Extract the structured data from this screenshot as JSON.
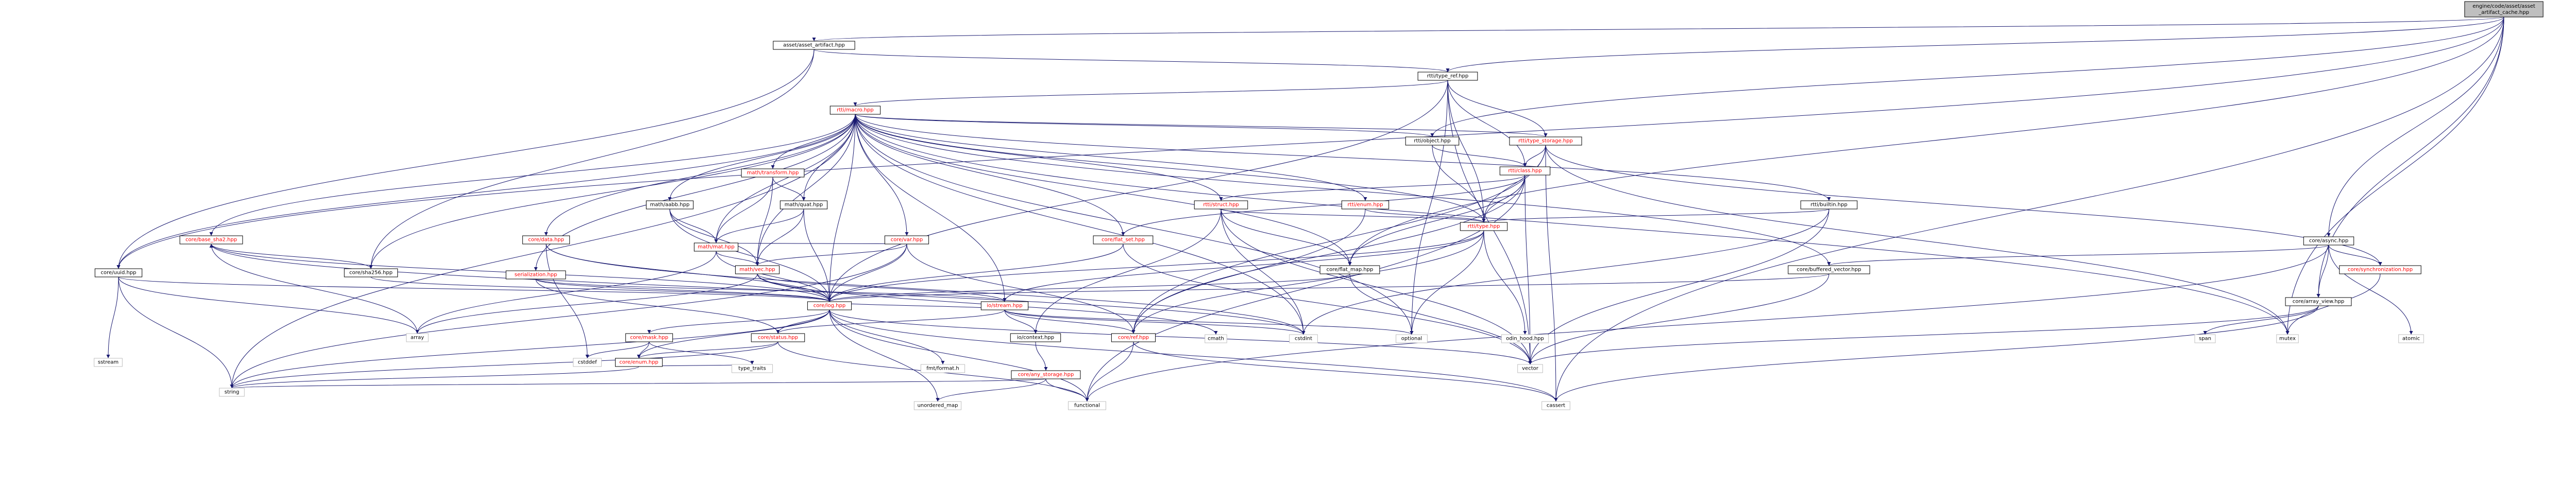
{
  "colors": {
    "edge": "#191970",
    "root_fill": "#bfbfbf",
    "node_fill": "#ffffff",
    "node_stroke": "#000000",
    "system_stroke": "#bfbfbf",
    "linked_text": "#000000",
    "unlinked_text": "#ff0000"
  },
  "nodes": [
    {
      "id": "root",
      "label": "engine/code/asset/asset\n_artifact_cache.hpp",
      "kind": "root"
    },
    {
      "id": "artifact",
      "label": "asset/asset_artifact.hpp",
      "kind": "plain"
    },
    {
      "id": "type_ref",
      "label": "rtti/type_ref.hpp",
      "kind": "plain"
    },
    {
      "id": "rtti_macro",
      "label": "rtti/macro.hpp",
      "kind": "red"
    },
    {
      "id": "type_storage",
      "label": "rtti/type_storage.hpp",
      "kind": "red"
    },
    {
      "id": "object",
      "label": "rtti/object.hpp",
      "kind": "plain"
    },
    {
      "id": "rtti_class",
      "label": "rtti/class.hpp",
      "kind": "red"
    },
    {
      "id": "rtti_struct",
      "label": "rtti/struct.hpp",
      "kind": "red"
    },
    {
      "id": "rtti_enum",
      "label": "rtti/enum.hpp",
      "kind": "red"
    },
    {
      "id": "rtti_type",
      "label": "rtti/type.hpp",
      "kind": "red"
    },
    {
      "id": "rtti_builtin",
      "label": "rtti/builtin.hpp",
      "kind": "plain"
    },
    {
      "id": "math_transform",
      "label": "math/transform.hpp",
      "kind": "red"
    },
    {
      "id": "math_quat",
      "label": "math/quat.hpp",
      "kind": "plain"
    },
    {
      "id": "math_aabb",
      "label": "math/aabb.hpp",
      "kind": "plain"
    },
    {
      "id": "math_mat",
      "label": "math/mat.hpp",
      "kind": "red"
    },
    {
      "id": "math_vec",
      "label": "math/vec.hpp",
      "kind": "red"
    },
    {
      "id": "core_data",
      "label": "core/data.hpp",
      "kind": "red"
    },
    {
      "id": "core_var",
      "label": "core/var.hpp",
      "kind": "red"
    },
    {
      "id": "core_flat_set",
      "label": "core/flat_set.hpp",
      "kind": "red"
    },
    {
      "id": "core_flat_map",
      "label": "core/flat_map.hpp",
      "kind": "plain"
    },
    {
      "id": "core_base_sha",
      "label": "core/base_sha2.hpp",
      "kind": "red"
    },
    {
      "id": "core_uuid",
      "label": "core/uuid.hpp",
      "kind": "plain"
    },
    {
      "id": "core_sha256",
      "label": "core/sha256.hpp",
      "kind": "plain"
    },
    {
      "id": "serialization",
      "label": "serialization.hpp",
      "kind": "red"
    },
    {
      "id": "core_async",
      "label": "core/async.hpp",
      "kind": "plain"
    },
    {
      "id": "core_buffered_vector",
      "label": "core/buffered_vector.hpp",
      "kind": "plain"
    },
    {
      "id": "core_sync",
      "label": "core/synchronization.hpp",
      "kind": "red"
    },
    {
      "id": "core_array_view",
      "label": "core/array_view.hpp",
      "kind": "plain"
    },
    {
      "id": "core_log",
      "label": "core/log.hpp",
      "kind": "red"
    },
    {
      "id": "io_stream",
      "label": "io/stream.hpp",
      "kind": "red"
    },
    {
      "id": "core_mask",
      "label": "core/mask.hpp",
      "kind": "red"
    },
    {
      "id": "core_status",
      "label": "core/status.hpp",
      "kind": "red"
    },
    {
      "id": "io_context",
      "label": "io/context.hpp",
      "kind": "plain"
    },
    {
      "id": "core_ref",
      "label": "core/ref.hpp",
      "kind": "red"
    },
    {
      "id": "core_enum",
      "label": "core/enum.hpp",
      "kind": "red"
    },
    {
      "id": "core_any_storage",
      "label": "core/any_storage.hpp",
      "kind": "red"
    },
    {
      "id": "s_mutex",
      "label": "mutex",
      "kind": "sys"
    },
    {
      "id": "s_optional",
      "label": "optional",
      "kind": "sys"
    },
    {
      "id": "s_cstdint",
      "label": "cstdint",
      "kind": "sys"
    },
    {
      "id": "s_cstddef",
      "label": "cstddef",
      "kind": "sys"
    },
    {
      "id": "s_array",
      "label": "array",
      "kind": "sys"
    },
    {
      "id": "s_sstream",
      "label": "sstream",
      "kind": "sys"
    },
    {
      "id": "s_type_traits",
      "label": "type_traits",
      "kind": "sys"
    },
    {
      "id": "s_string",
      "label": "string",
      "kind": "sys"
    },
    {
      "id": "s_unordered_map",
      "label": "unordered_map",
      "kind": "sys"
    },
    {
      "id": "s_functional",
      "label": "functional",
      "kind": "sys"
    },
    {
      "id": "s_cassert",
      "label": "cassert",
      "kind": "sys"
    },
    {
      "id": "s_vector",
      "label": "vector",
      "kind": "sys"
    },
    {
      "id": "s_cmath",
      "label": "cmath",
      "kind": "sys"
    },
    {
      "id": "s_fmt",
      "label": "fmt/format.h",
      "kind": "sys"
    },
    {
      "id": "s_span",
      "label": "span",
      "kind": "sys"
    },
    {
      "id": "s_atomic",
      "label": "atomic",
      "kind": "sys"
    },
    {
      "id": "s_odin_hood",
      "label": "odin_hood.hpp",
      "kind": "sys"
    }
  ],
  "edges": [
    [
      "root",
      "artifact"
    ],
    [
      "root",
      "core_uuid"
    ],
    [
      "root",
      "core_flat_map"
    ],
    [
      "root",
      "s_mutex"
    ],
    [
      "root",
      "object"
    ],
    [
      "root",
      "core_async"
    ],
    [
      "root",
      "core_array_view"
    ],
    [
      "root",
      "s_cassert"
    ],
    [
      "root",
      "type_ref"
    ],
    [
      "artifact",
      "type_ref"
    ],
    [
      "artifact",
      "core_uuid"
    ],
    [
      "artifact",
      "core_sha256"
    ],
    [
      "type_ref",
      "rtti_macro"
    ],
    [
      "type_ref",
      "type_storage"
    ],
    [
      "type_ref",
      "rtti_class"
    ],
    [
      "type_ref",
      "rtti_type"
    ],
    [
      "type_ref",
      "s_optional"
    ],
    [
      "type_ref",
      "core_log"
    ],
    [
      "type_ref",
      "s_vector"
    ],
    [
      "rtti_macro",
      "object"
    ],
    [
      "rtti_macro",
      "type_storage"
    ],
    [
      "rtti_macro",
      "rtti_struct"
    ],
    [
      "rtti_macro",
      "rtti_enum"
    ],
    [
      "rtti_macro",
      "rtti_type"
    ],
    [
      "rtti_macro",
      "rtti_builtin"
    ],
    [
      "rtti_macro",
      "math_transform"
    ],
    [
      "rtti_macro",
      "math_quat"
    ],
    [
      "rtti_macro",
      "math_aabb"
    ],
    [
      "rtti_macro",
      "math_mat"
    ],
    [
      "rtti_macro",
      "math_vec"
    ],
    [
      "rtti_macro",
      "core_data"
    ],
    [
      "rtti_macro",
      "core_var"
    ],
    [
      "rtti_macro",
      "core_flat_set"
    ],
    [
      "rtti_macro",
      "core_flat_map"
    ],
    [
      "rtti_macro",
      "core_base_sha"
    ],
    [
      "rtti_macro",
      "core_uuid"
    ],
    [
      "rtti_macro",
      "core_sha256"
    ],
    [
      "rtti_macro",
      "serialization"
    ],
    [
      "rtti_macro",
      "core_buffered_vector"
    ],
    [
      "rtti_macro",
      "s_mutex"
    ],
    [
      "rtti_macro",
      "s_string"
    ],
    [
      "rtti_macro",
      "io_stream"
    ],
    [
      "rtti_macro",
      "core_log"
    ],
    [
      "rtti_macro",
      "s_optional"
    ],
    [
      "rtti_macro",
      "s_cstdint"
    ],
    [
      "type_storage",
      "rtti_class"
    ],
    [
      "type_storage",
      "rtti_type"
    ],
    [
      "type_storage",
      "core_sync"
    ],
    [
      "type_storage",
      "s_mutex"
    ],
    [
      "type_storage",
      "s_cassert"
    ],
    [
      "type_storage",
      "core_ref"
    ],
    [
      "object",
      "rtti_class"
    ],
    [
      "object",
      "rtti_type"
    ],
    [
      "rtti_class",
      "rtti_struct"
    ],
    [
      "rtti_class",
      "rtti_type"
    ],
    [
      "rtti_class",
      "core_flat_set"
    ],
    [
      "rtti_class",
      "core_flat_map"
    ],
    [
      "rtti_class",
      "s_vector"
    ],
    [
      "rtti_class",
      "core_ref"
    ],
    [
      "rtti_class",
      "s_functional"
    ],
    [
      "rtti_struct",
      "rtti_type"
    ],
    [
      "rtti_struct",
      "core_flat_map"
    ],
    [
      "rtti_struct",
      "io_context"
    ],
    [
      "rtti_struct",
      "s_cstdint"
    ],
    [
      "rtti_struct",
      "s_vector"
    ],
    [
      "rtti_enum",
      "rtti_type"
    ],
    [
      "rtti_enum",
      "core_ref"
    ],
    [
      "rtti_type",
      "core_log"
    ],
    [
      "rtti_type",
      "io_stream"
    ],
    [
      "rtti_type",
      "core_ref"
    ],
    [
      "rtti_type",
      "s_optional"
    ],
    [
      "rtti_type",
      "s_odin_hood"
    ],
    [
      "rtti_builtin",
      "rtti_type"
    ],
    [
      "rtti_builtin",
      "s_cstdint"
    ],
    [
      "rtti_builtin",
      "s_vector"
    ],
    [
      "math_transform",
      "math_mat"
    ],
    [
      "math_transform",
      "math_vec"
    ],
    [
      "math_transform",
      "math_quat"
    ],
    [
      "math_quat",
      "math_vec"
    ],
    [
      "math_quat",
      "math_mat"
    ],
    [
      "math_quat",
      "core_log"
    ],
    [
      "math_aabb",
      "math_vec"
    ],
    [
      "math_aabb",
      "math_mat"
    ],
    [
      "math_aabb",
      "core_log"
    ],
    [
      "math_mat",
      "math_vec"
    ],
    [
      "math_mat",
      "core_log"
    ],
    [
      "math_mat",
      "s_array"
    ],
    [
      "math_vec",
      "core_log"
    ],
    [
      "math_vec",
      "io_stream"
    ],
    [
      "math_vec",
      "s_cmath"
    ],
    [
      "math_vec",
      "s_array"
    ],
    [
      "core_data",
      "core_log"
    ],
    [
      "core_data",
      "s_cstddef"
    ],
    [
      "core_data",
      "s_cstdint"
    ],
    [
      "core_var",
      "math_vec"
    ],
    [
      "core_var",
      "math_mat"
    ],
    [
      "core_var",
      "core_log"
    ],
    [
      "core_var",
      "core_ref"
    ],
    [
      "core_var",
      "s_string"
    ],
    [
      "core_flat_set",
      "core_log"
    ],
    [
      "core_flat_set",
      "s_vector"
    ],
    [
      "core_flat_map",
      "core_log"
    ],
    [
      "core_flat_map",
      "s_vector"
    ],
    [
      "core_base_sha",
      "core_log"
    ],
    [
      "core_base_sha",
      "s_array"
    ],
    [
      "core_base_sha",
      "s_cstdint"
    ],
    [
      "core_uuid",
      "core_log"
    ],
    [
      "core_uuid",
      "s_array"
    ],
    [
      "core_uuid",
      "s_string"
    ],
    [
      "core_uuid",
      "s_sstream"
    ],
    [
      "core_sha256",
      "core_base_sha"
    ],
    [
      "core_sha256",
      "core_log"
    ],
    [
      "serialization",
      "core_log"
    ],
    [
      "serialization",
      "io_stream"
    ],
    [
      "serialization",
      "core_status"
    ],
    [
      "core_async",
      "core_buffered_vector"
    ],
    [
      "core_async",
      "core_sync"
    ],
    [
      "core_async",
      "core_array_view"
    ],
    [
      "core_async",
      "s_functional"
    ],
    [
      "core_async",
      "s_atomic"
    ],
    [
      "core_buffered_vector",
      "core_log"
    ],
    [
      "core_buffered_vector",
      "s_vector"
    ],
    [
      "core_sync",
      "s_mutex"
    ],
    [
      "core_array_view",
      "s_span"
    ],
    [
      "core_array_view",
      "s_cassert"
    ],
    [
      "core_array_view",
      "s_vector"
    ],
    [
      "core_log",
      "core_mask"
    ],
    [
      "core_log",
      "core_status"
    ],
    [
      "core_log",
      "core_enum"
    ],
    [
      "core_log",
      "s_fmt"
    ],
    [
      "core_log",
      "s_string"
    ],
    [
      "core_log",
      "s_functional"
    ],
    [
      "core_log",
      "s_unordered_map"
    ],
    [
      "core_log",
      "s_cassert"
    ],
    [
      "core_log",
      "s_vector"
    ],
    [
      "io_stream",
      "core_log"
    ],
    [
      "io_stream",
      "io_context"
    ],
    [
      "io_stream",
      "core_status"
    ],
    [
      "io_stream",
      "core_ref"
    ],
    [
      "io_stream",
      "s_cstdint"
    ],
    [
      "io_stream",
      "s_optional"
    ],
    [
      "core_mask",
      "core_enum"
    ],
    [
      "core_mask",
      "s_type_traits"
    ],
    [
      "core_mask",
      "s_cstddef"
    ],
    [
      "core_status",
      "core_enum"
    ],
    [
      "core_status",
      "s_string"
    ],
    [
      "core_status",
      "s_functional"
    ],
    [
      "io_context",
      "core_any_storage"
    ],
    [
      "core_ref",
      "s_functional"
    ],
    [
      "core_ref",
      "s_cassert"
    ],
    [
      "core_enum",
      "s_string"
    ],
    [
      "core_enum",
      "s_type_traits"
    ],
    [
      "core_any_storage",
      "s_unordered_map"
    ],
    [
      "core_any_storage",
      "s_functional"
    ],
    [
      "core_any_storage",
      "s_string"
    ]
  ]
}
